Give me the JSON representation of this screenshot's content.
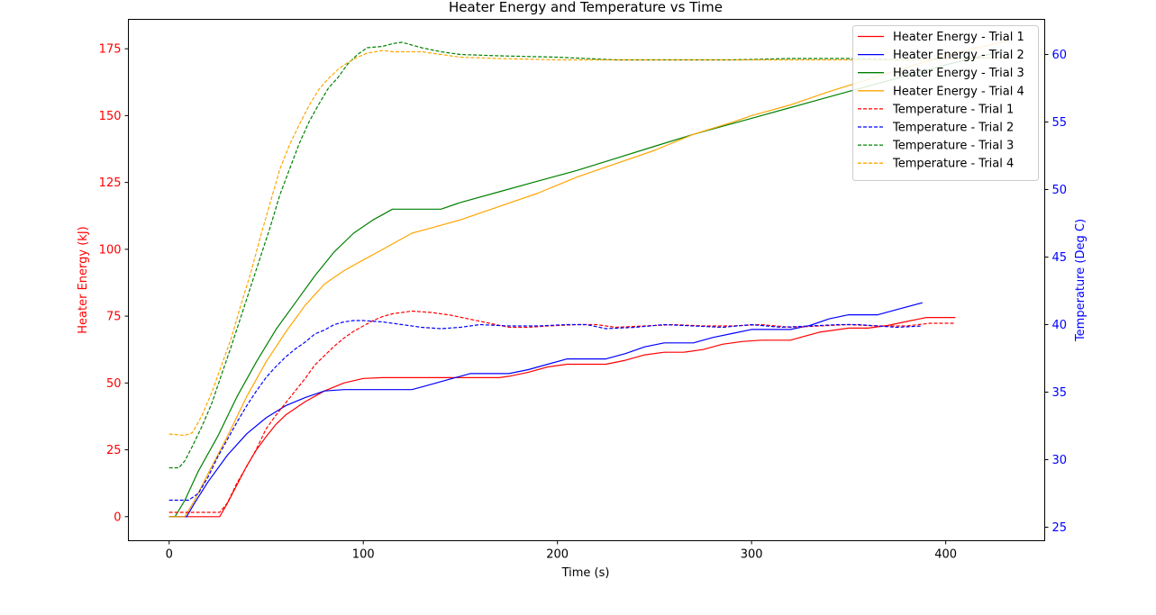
{
  "chart_data": {
    "type": "line",
    "title": "Heater Energy and Temperature vs Time",
    "xlabel": "Time (s)",
    "ylabel_left": "Heater Energy (kJ)",
    "ylabel_right": "Temperature (Deg C)",
    "xlim": [
      -21,
      451
    ],
    "ylim_left": [
      -9,
      186
    ],
    "ylim_right": [
      24.0,
      62.6
    ],
    "x_ticks": [
      0,
      100,
      200,
      300,
      400
    ],
    "y_left_ticks": [
      0,
      25,
      50,
      75,
      100,
      125,
      150,
      175
    ],
    "y_right_ticks": [
      25,
      30,
      35,
      40,
      45,
      50,
      55,
      60
    ],
    "grid": false,
    "legend_position": "top-right",
    "colors": {
      "left_axis": "#ff0000",
      "right_axis": "#0000ff",
      "trial1": "#ff0000",
      "trial2": "#0000ff",
      "trial3": "#008000",
      "trial4": "#ffa500"
    },
    "series": [
      {
        "name": "Heater Energy - Trial 1",
        "axis": "left",
        "style": "solid",
        "color": "#ff0000",
        "points": [
          [
            0,
            0
          ],
          [
            26,
            0
          ],
          [
            30,
            5
          ],
          [
            35,
            12
          ],
          [
            40,
            19
          ],
          [
            45,
            25
          ],
          [
            50,
            30
          ],
          [
            55,
            34.5
          ],
          [
            60,
            38
          ],
          [
            70,
            43
          ],
          [
            80,
            47
          ],
          [
            90,
            50
          ],
          [
            100,
            51.7
          ],
          [
            110,
            52
          ],
          [
            170,
            52
          ],
          [
            175,
            52.5
          ],
          [
            185,
            54
          ],
          [
            195,
            56
          ],
          [
            205,
            57
          ],
          [
            225,
            57
          ],
          [
            235,
            58.5
          ],
          [
            245,
            60.5
          ],
          [
            255,
            61.5
          ],
          [
            265,
            61.5
          ],
          [
            275,
            62.5
          ],
          [
            285,
            64.5
          ],
          [
            295,
            65.5
          ],
          [
            305,
            66
          ],
          [
            320,
            66
          ],
          [
            325,
            67
          ],
          [
            335,
            69
          ],
          [
            350,
            70.5
          ],
          [
            360,
            70.5
          ],
          [
            370,
            71.5
          ],
          [
            380,
            73
          ],
          [
            390,
            74.5
          ],
          [
            405,
            74.5
          ]
        ]
      },
      {
        "name": "Heater Energy - Trial 2",
        "axis": "left",
        "style": "solid",
        "color": "#0000ff",
        "points": [
          [
            0,
            0
          ],
          [
            9,
            0
          ],
          [
            13,
            5
          ],
          [
            20,
            13
          ],
          [
            30,
            23
          ],
          [
            40,
            31
          ],
          [
            50,
            37
          ],
          [
            60,
            41.5
          ],
          [
            70,
            44.5
          ],
          [
            80,
            47
          ],
          [
            90,
            47.5
          ],
          [
            125,
            47.5
          ],
          [
            130,
            48.5
          ],
          [
            140,
            50.5
          ],
          [
            150,
            52.5
          ],
          [
            155,
            53.5
          ],
          [
            175,
            53.5
          ],
          [
            185,
            55
          ],
          [
            195,
            57
          ],
          [
            205,
            59
          ],
          [
            225,
            59
          ],
          [
            235,
            61
          ],
          [
            245,
            63.5
          ],
          [
            255,
            65
          ],
          [
            270,
            65
          ],
          [
            280,
            67
          ],
          [
            290,
            68.5
          ],
          [
            300,
            70
          ],
          [
            320,
            70
          ],
          [
            330,
            71.5
          ],
          [
            340,
            74
          ],
          [
            350,
            75.5
          ],
          [
            365,
            75.5
          ],
          [
            375,
            77.5
          ],
          [
            388,
            80
          ]
        ]
      },
      {
        "name": "Heater Energy - Trial 3",
        "axis": "left",
        "style": "solid",
        "color": "#008000",
        "points": [
          [
            0,
            0
          ],
          [
            3,
            0
          ],
          [
            8,
            6
          ],
          [
            15,
            17
          ],
          [
            25,
            30
          ],
          [
            35,
            45
          ],
          [
            45,
            58
          ],
          [
            55,
            70
          ],
          [
            65,
            80
          ],
          [
            75,
            90
          ],
          [
            85,
            99
          ],
          [
            95,
            106
          ],
          [
            105,
            111
          ],
          [
            110,
            113
          ],
          [
            115,
            115
          ],
          [
            140,
            115
          ],
          [
            150,
            117.5
          ],
          [
            170,
            121.5
          ],
          [
            190,
            125.5
          ],
          [
            210,
            129.5
          ],
          [
            230,
            134
          ],
          [
            250,
            138.5
          ],
          [
            270,
            143
          ],
          [
            290,
            147
          ],
          [
            300,
            149
          ],
          [
            320,
            153
          ],
          [
            340,
            157
          ],
          [
            360,
            161
          ],
          [
            380,
            165
          ],
          [
            400,
            169
          ],
          [
            420,
            172.5
          ],
          [
            430,
            174.5
          ]
        ]
      },
      {
        "name": "Heater Energy - Trial 4",
        "axis": "left",
        "style": "solid",
        "color": "#ffa500",
        "points": [
          [
            0,
            0
          ],
          [
            8,
            0
          ],
          [
            13,
            6
          ],
          [
            20,
            16
          ],
          [
            30,
            30
          ],
          [
            40,
            45
          ],
          [
            50,
            58
          ],
          [
            60,
            69
          ],
          [
            70,
            79
          ],
          [
            80,
            87
          ],
          [
            90,
            92
          ],
          [
            100,
            96
          ],
          [
            110,
            100
          ],
          [
            125,
            106
          ],
          [
            130,
            107
          ],
          [
            150,
            111
          ],
          [
            170,
            116
          ],
          [
            190,
            121
          ],
          [
            210,
            127
          ],
          [
            230,
            132
          ],
          [
            250,
            137
          ],
          [
            270,
            143
          ],
          [
            290,
            147.5
          ],
          [
            300,
            150
          ],
          [
            320,
            154
          ],
          [
            340,
            159
          ],
          [
            360,
            163.5
          ],
          [
            380,
            168
          ],
          [
            400,
            172.5
          ],
          [
            420,
            176
          ],
          [
            432,
            178
          ]
        ]
      },
      {
        "name": "Temperature - Trial 1",
        "axis": "right",
        "style": "dashed",
        "color": "#ff0000",
        "points": [
          [
            0,
            26.1
          ],
          [
            15,
            26.1
          ],
          [
            26,
            26.1
          ],
          [
            30,
            26.8
          ],
          [
            35,
            28.3
          ],
          [
            40,
            29.5
          ],
          [
            45,
            30.8
          ],
          [
            50,
            32.3
          ],
          [
            55,
            33.3
          ],
          [
            60,
            34.2
          ],
          [
            65,
            35.1
          ],
          [
            70,
            36
          ],
          [
            75,
            37
          ],
          [
            80,
            37.7
          ],
          [
            85,
            38.4
          ],
          [
            90,
            39
          ],
          [
            95,
            39.5
          ],
          [
            100,
            39.9
          ],
          [
            105,
            40.3
          ],
          [
            110,
            40.6
          ],
          [
            115,
            40.8
          ],
          [
            125,
            41
          ],
          [
            135,
            40.9
          ],
          [
            145,
            40.7
          ],
          [
            155,
            40.4
          ],
          [
            165,
            40.1
          ],
          [
            175,
            39.8
          ],
          [
            185,
            39.8
          ],
          [
            195,
            39.9
          ],
          [
            210,
            40
          ],
          [
            220,
            40
          ],
          [
            230,
            39.8
          ],
          [
            245,
            39.9
          ],
          [
            260,
            40
          ],
          [
            275,
            39.9
          ],
          [
            290,
            39.9
          ],
          [
            305,
            40
          ],
          [
            320,
            39.8
          ],
          [
            335,
            39.9
          ],
          [
            350,
            40
          ],
          [
            365,
            39.9
          ],
          [
            380,
            39.9
          ],
          [
            392,
            40.1
          ],
          [
            405,
            40.1
          ]
        ]
      },
      {
        "name": "Temperature - Trial 2",
        "axis": "right",
        "style": "dashed",
        "color": "#0000ff",
        "points": [
          [
            0,
            27
          ],
          [
            10,
            27
          ],
          [
            15,
            27.5
          ],
          [
            20,
            28.7
          ],
          [
            25,
            30.2
          ],
          [
            30,
            31.5
          ],
          [
            35,
            32.8
          ],
          [
            40,
            34
          ],
          [
            45,
            35.1
          ],
          [
            50,
            36.1
          ],
          [
            55,
            36.9
          ],
          [
            60,
            37.6
          ],
          [
            65,
            38.2
          ],
          [
            70,
            38.7
          ],
          [
            75,
            39.3
          ],
          [
            80,
            39.6
          ],
          [
            85,
            40
          ],
          [
            90,
            40.2
          ],
          [
            95,
            40.3
          ],
          [
            100,
            40.3
          ],
          [
            110,
            40.2
          ],
          [
            120,
            40
          ],
          [
            130,
            39.8
          ],
          [
            140,
            39.7
          ],
          [
            150,
            39.8
          ],
          [
            160,
            40
          ],
          [
            175,
            39.9
          ],
          [
            190,
            39.9
          ],
          [
            205,
            40
          ],
          [
            215,
            40
          ],
          [
            225,
            39.7
          ],
          [
            240,
            39.8
          ],
          [
            255,
            40
          ],
          [
            270,
            39.9
          ],
          [
            285,
            39.8
          ],
          [
            300,
            40
          ],
          [
            315,
            39.8
          ],
          [
            330,
            39.9
          ],
          [
            345,
            40
          ],
          [
            355,
            40
          ],
          [
            365,
            39.9
          ],
          [
            375,
            39.8
          ],
          [
            388,
            39.9
          ]
        ]
      },
      {
        "name": "Temperature - Trial 3",
        "axis": "right",
        "style": "dashed",
        "color": "#008000",
        "points": [
          [
            0,
            29.4
          ],
          [
            5,
            29.4
          ],
          [
            8,
            29.9
          ],
          [
            12,
            31
          ],
          [
            17,
            32.5
          ],
          [
            22,
            34.2
          ],
          [
            27,
            36.3
          ],
          [
            32,
            38.4
          ],
          [
            37,
            40.6
          ],
          [
            42,
            42.8
          ],
          [
            47,
            45
          ],
          [
            52,
            47.2
          ],
          [
            57,
            49.6
          ],
          [
            62,
            51.5
          ],
          [
            67,
            53.4
          ],
          [
            72,
            55
          ],
          [
            77,
            56.3
          ],
          [
            82,
            57.5
          ],
          [
            87,
            58.3
          ],
          [
            92,
            59.3
          ],
          [
            97,
            60
          ],
          [
            102,
            60.5
          ],
          [
            110,
            60.6
          ],
          [
            115,
            60.8
          ],
          [
            120,
            60.9
          ],
          [
            130,
            60.5
          ],
          [
            140,
            60.2
          ],
          [
            150,
            60
          ],
          [
            170,
            59.9
          ],
          [
            200,
            59.8
          ],
          [
            230,
            59.6
          ],
          [
            260,
            59.6
          ],
          [
            290,
            59.6
          ],
          [
            320,
            59.7
          ],
          [
            350,
            59.7
          ],
          [
            380,
            59.6
          ],
          [
            410,
            59.7
          ],
          [
            430,
            59.8
          ]
        ]
      },
      {
        "name": "Temperature - Trial 4",
        "axis": "right",
        "style": "dashed",
        "color": "#ffa500",
        "points": [
          [
            0,
            31.9
          ],
          [
            8,
            31.8
          ],
          [
            12,
            32
          ],
          [
            17,
            33.3
          ],
          [
            22,
            35
          ],
          [
            27,
            37
          ],
          [
            32,
            39
          ],
          [
            37,
            41.5
          ],
          [
            42,
            43.8
          ],
          [
            47,
            46.5
          ],
          [
            52,
            49
          ],
          [
            57,
            51.5
          ],
          [
            62,
            53.3
          ],
          [
            67,
            54.8
          ],
          [
            72,
            56.2
          ],
          [
            77,
            57.4
          ],
          [
            82,
            58.2
          ],
          [
            87,
            58.9
          ],
          [
            92,
            59.4
          ],
          [
            97,
            59.8
          ],
          [
            102,
            60.1
          ],
          [
            110,
            60.3
          ],
          [
            115,
            60.2
          ],
          [
            120,
            60.2
          ],
          [
            130,
            60.2
          ],
          [
            140,
            60
          ],
          [
            150,
            59.8
          ],
          [
            170,
            59.7
          ],
          [
            200,
            59.6
          ],
          [
            230,
            59.6
          ],
          [
            260,
            59.6
          ],
          [
            290,
            59.6
          ],
          [
            320,
            59.6
          ],
          [
            350,
            59.6
          ],
          [
            380,
            59.6
          ],
          [
            410,
            59.7
          ],
          [
            432,
            59.8
          ]
        ]
      }
    ]
  }
}
